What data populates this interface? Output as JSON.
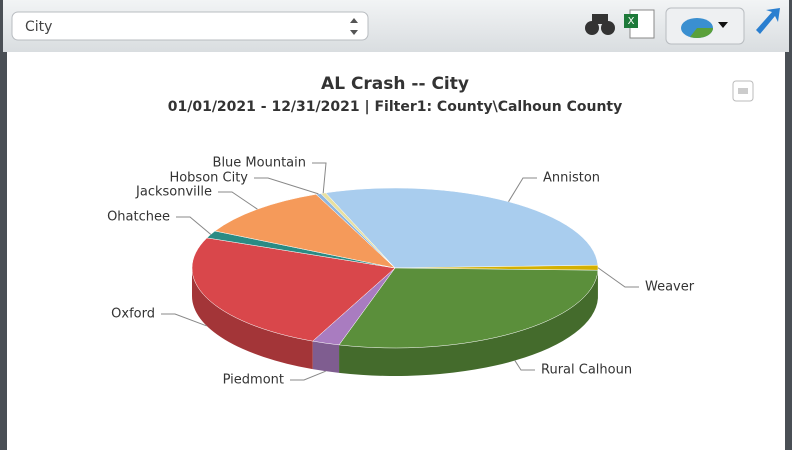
{
  "dropdown": {
    "value": "City"
  },
  "chart_data": {
    "type": "pie",
    "title": "AL Crash -- City",
    "subtitle": "01/01/2021 - 12/31/2021 | Filter1: County\\Calhoun County",
    "categories": [
      "Anniston",
      "Weaver",
      "Rural Calhoun",
      "Piedmont",
      "Oxford",
      "Ohatchee",
      "Jacksonville",
      "Hobson City",
      "Blue Mountain"
    ],
    "values": [
      30,
      1,
      29,
      2.2,
      24.5,
      1.5,
      11,
      0.4,
      0.4
    ],
    "colors": [
      "#a9cdee",
      "#d4b000",
      "#5b8f3b",
      "#a97cc0",
      "#d9474b",
      "#2a8b84",
      "#f59a5a",
      "#8fb7e0",
      "#e8e0a0"
    ]
  }
}
